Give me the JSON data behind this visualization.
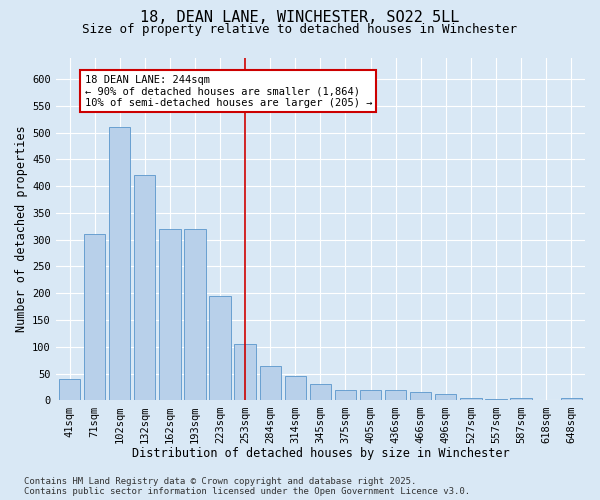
{
  "title": "18, DEAN LANE, WINCHESTER, SO22 5LL",
  "subtitle": "Size of property relative to detached houses in Winchester",
  "xlabel": "Distribution of detached houses by size in Winchester",
  "ylabel": "Number of detached properties",
  "categories": [
    "41sqm",
    "71sqm",
    "102sqm",
    "132sqm",
    "162sqm",
    "193sqm",
    "223sqm",
    "253sqm",
    "284sqm",
    "314sqm",
    "345sqm",
    "375sqm",
    "405sqm",
    "436sqm",
    "466sqm",
    "496sqm",
    "527sqm",
    "557sqm",
    "587sqm",
    "618sqm",
    "648sqm"
  ],
  "values": [
    40,
    310,
    510,
    420,
    320,
    320,
    195,
    105,
    65,
    45,
    30,
    20,
    20,
    20,
    15,
    12,
    5,
    2,
    5,
    1,
    5
  ],
  "bar_color": "#b8d0ea",
  "bar_edge_color": "#5a96cc",
  "vline_index": 7,
  "vline_color": "#cc0000",
  "annotation_text": "18 DEAN LANE: 244sqm\n← 90% of detached houses are smaller (1,864)\n10% of semi-detached houses are larger (205) →",
  "annotation_box_fc": "#ffffff",
  "annotation_box_ec": "#cc0000",
  "bg_color": "#d9e8f5",
  "ylim_max": 640,
  "ytick_max": 600,
  "ytick_step": 50,
  "title_fontsize": 11,
  "subtitle_fontsize": 9,
  "axis_label_fontsize": 8.5,
  "tick_fontsize": 7.5,
  "annot_fontsize": 7.5,
  "footer_fontsize": 6.5,
  "footer": "Contains HM Land Registry data © Crown copyright and database right 2025.\nContains public sector information licensed under the Open Government Licence v3.0."
}
